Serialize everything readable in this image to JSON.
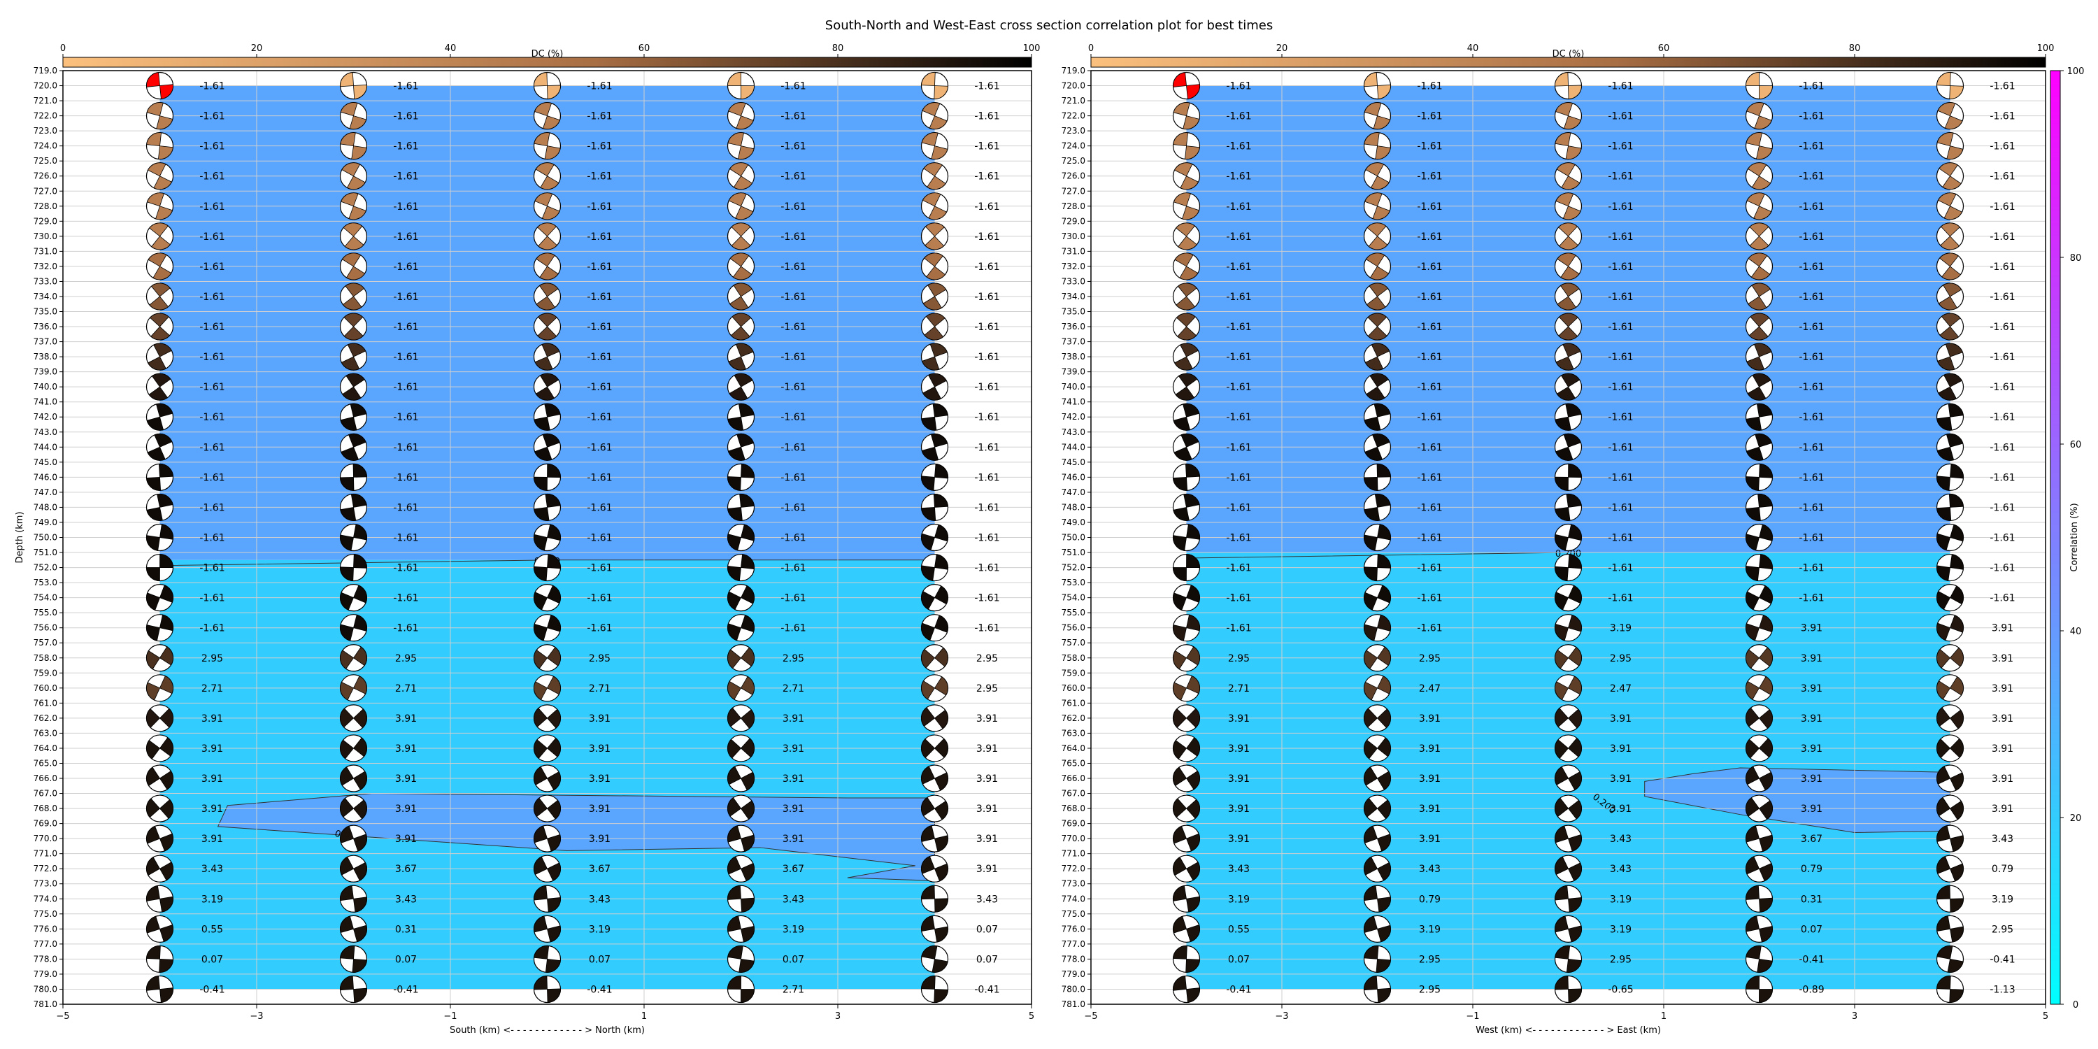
{
  "title": "South-North and West-East cross section correlation plot for best times",
  "colorbar_top": {
    "label": "DC (%)",
    "ticks": [
      "0",
      "20",
      "40",
      "60",
      "80",
      "100"
    ],
    "colors": [
      "#fcc07e",
      "#a86e44",
      "#000000"
    ]
  },
  "colorbar_right": {
    "label": "Correlation (%)",
    "ticks": [
      "0",
      "20",
      "40",
      "60",
      "80",
      "100"
    ],
    "colors": [
      "#00ffff",
      "#8080ff",
      "#ff00ff"
    ]
  },
  "chart_data": [
    {
      "type": "heatmap",
      "name": "south-north",
      "xlabel": "South (km) <- - - - - - - - - - - - > North (km)",
      "ylabel": "Depth (km)",
      "xlim": [
        -5,
        5
      ],
      "ylim": [
        781.0,
        719.0
      ],
      "x_ticks": [
        "-5",
        "-3",
        "-1",
        "1",
        "3",
        "5"
      ],
      "y_ticks": [
        "719.0",
        "720.0",
        "721.0",
        "722.0",
        "723.0",
        "724.0",
        "725.0",
        "726.0",
        "727.0",
        "728.0",
        "729.0",
        "730.0",
        "731.0",
        "732.0",
        "733.0",
        "734.0",
        "735.0",
        "736.0",
        "737.0",
        "738.0",
        "739.0",
        "740.0",
        "741.0",
        "742.0",
        "743.0",
        "744.0",
        "745.0",
        "746.0",
        "747.0",
        "748.0",
        "749.0",
        "750.0",
        "751.0",
        "752.0",
        "753.0",
        "754.0",
        "755.0",
        "756.0",
        "757.0",
        "758.0",
        "759.0",
        "760.0",
        "761.0",
        "762.0",
        "763.0",
        "764.0",
        "765.0",
        "766.0",
        "767.0",
        "768.0",
        "769.0",
        "770.0",
        "771.0",
        "772.0",
        "773.0",
        "774.0",
        "775.0",
        "776.0",
        "777.0",
        "778.0",
        "779.0",
        "780.0",
        "781.0"
      ],
      "columns_x": [
        -4,
        -2,
        0,
        2,
        4
      ],
      "rows_depth": [
        720,
        722,
        724,
        726,
        728,
        730,
        732,
        734,
        736,
        738,
        740,
        742,
        744,
        746,
        748,
        750,
        752,
        754,
        756,
        758,
        760,
        762,
        764,
        766,
        768,
        770,
        772,
        774,
        776,
        778,
        780
      ],
      "labels": [
        [
          "-1.61",
          "-1.61",
          "-1.61",
          "-1.61",
          "-1.61"
        ],
        [
          "-1.61",
          "-1.61",
          "-1.61",
          "-1.61",
          "-1.61"
        ],
        [
          "-1.61",
          "-1.61",
          "-1.61",
          "-1.61",
          "-1.61"
        ],
        [
          "-1.61",
          "-1.61",
          "-1.61",
          "-1.61",
          "-1.61"
        ],
        [
          "-1.61",
          "-1.61",
          "-1.61",
          "-1.61",
          "-1.61"
        ],
        [
          "-1.61",
          "-1.61",
          "-1.61",
          "-1.61",
          "-1.61"
        ],
        [
          "-1.61",
          "-1.61",
          "-1.61",
          "-1.61",
          "-1.61"
        ],
        [
          "-1.61",
          "-1.61",
          "-1.61",
          "-1.61",
          "-1.61"
        ],
        [
          "-1.61",
          "-1.61",
          "-1.61",
          "-1.61",
          "-1.61"
        ],
        [
          "-1.61",
          "-1.61",
          "-1.61",
          "-1.61",
          "-1.61"
        ],
        [
          "-1.61",
          "-1.61",
          "-1.61",
          "-1.61",
          "-1.61"
        ],
        [
          "-1.61",
          "-1.61",
          "-1.61",
          "-1.61",
          "-1.61"
        ],
        [
          "-1.61",
          "-1.61",
          "-1.61",
          "-1.61",
          "-1.61"
        ],
        [
          "-1.61",
          "-1.61",
          "-1.61",
          "-1.61",
          "-1.61"
        ],
        [
          "-1.61",
          "-1.61",
          "-1.61",
          "-1.61",
          "-1.61"
        ],
        [
          "-1.61",
          "-1.61",
          "-1.61",
          "-1.61",
          "-1.61"
        ],
        [
          "-1.61",
          "-1.61",
          "-1.61",
          "-1.61",
          "-1.61"
        ],
        [
          "-1.61",
          "-1.61",
          "-1.61",
          "-1.61",
          "-1.61"
        ],
        [
          "-1.61",
          "-1.61",
          "-1.61",
          "-1.61",
          "-1.61"
        ],
        [
          "2.95",
          "2.95",
          "2.95",
          "2.95",
          "2.95"
        ],
        [
          "2.71",
          "2.71",
          "2.71",
          "2.71",
          "2.95"
        ],
        [
          "3.91",
          "3.91",
          "3.91",
          "3.91",
          "3.91"
        ],
        [
          "3.91",
          "3.91",
          "3.91",
          "3.91",
          "3.91"
        ],
        [
          "3.91",
          "3.91",
          "3.91",
          "3.91",
          "3.91"
        ],
        [
          "3.91",
          "3.91",
          "3.91",
          "3.91",
          "3.91"
        ],
        [
          "3.91",
          "3.91",
          "3.91",
          "3.91",
          "3.91"
        ],
        [
          "3.43",
          "3.67",
          "3.67",
          "3.67",
          "3.91"
        ],
        [
          "3.19",
          "3.43",
          "3.43",
          "3.43",
          "3.43"
        ],
        [
          "0.55",
          "0.31",
          "3.19",
          "3.19",
          "0.07"
        ],
        [
          "0.07",
          "0.07",
          "0.07",
          "0.07",
          "0.07"
        ],
        [
          "-0.41",
          "-0.41",
          "-0.41",
          "2.71",
          "-0.41"
        ]
      ],
      "dc_percent": [
        8,
        40,
        40,
        40,
        40,
        40,
        50,
        60,
        70,
        80,
        90,
        95,
        95,
        95,
        95,
        95,
        95,
        95,
        95,
        78,
        72,
        90,
        92,
        92,
        92,
        92,
        92,
        92,
        92,
        92,
        92
      ],
      "correlation_bands": [
        {
          "from_depth": 719.0,
          "to_depth": 751.5,
          "value_percent": 35
        },
        {
          "from_depth": 751.5,
          "to_depth": 781.0,
          "value_percent": 20
        },
        {
          "region": "768",
          "value_percent": 35
        }
      ],
      "contour_labels": [
        "0.200",
        "0."
      ]
    },
    {
      "type": "heatmap",
      "name": "west-east",
      "xlabel": "West (km) <- - - - - - - - - - - - > East (km)",
      "ylabel": "",
      "xlim": [
        -5,
        5
      ],
      "ylim": [
        781.0,
        719.0
      ],
      "x_ticks": [
        "-5",
        "-3",
        "-1",
        "1",
        "3",
        "5"
      ],
      "columns_x": [
        -4,
        -2,
        0,
        2,
        4
      ],
      "rows_depth": [
        720,
        722,
        724,
        726,
        728,
        730,
        732,
        734,
        736,
        738,
        740,
        742,
        744,
        746,
        748,
        750,
        752,
        754,
        756,
        758,
        760,
        762,
        764,
        766,
        768,
        770,
        772,
        774,
        776,
        778,
        780
      ],
      "labels": [
        [
          "-1.61",
          "-1.61",
          "-1.61",
          "-1.61",
          "-1.61"
        ],
        [
          "-1.61",
          "-1.61",
          "-1.61",
          "-1.61",
          "-1.61"
        ],
        [
          "-1.61",
          "-1.61",
          "-1.61",
          "-1.61",
          "-1.61"
        ],
        [
          "-1.61",
          "-1.61",
          "-1.61",
          "-1.61",
          "-1.61"
        ],
        [
          "-1.61",
          "-1.61",
          "-1.61",
          "-1.61",
          "-1.61"
        ],
        [
          "-1.61",
          "-1.61",
          "-1.61",
          "-1.61",
          "-1.61"
        ],
        [
          "-1.61",
          "-1.61",
          "-1.61",
          "-1.61",
          "-1.61"
        ],
        [
          "-1.61",
          "-1.61",
          "-1.61",
          "-1.61",
          "-1.61"
        ],
        [
          "-1.61",
          "-1.61",
          "-1.61",
          "-1.61",
          "-1.61"
        ],
        [
          "-1.61",
          "-1.61",
          "-1.61",
          "-1.61",
          "-1.61"
        ],
        [
          "-1.61",
          "-1.61",
          "-1.61",
          "-1.61",
          "-1.61"
        ],
        [
          "-1.61",
          "-1.61",
          "-1.61",
          "-1.61",
          "-1.61"
        ],
        [
          "-1.61",
          "-1.61",
          "-1.61",
          "-1.61",
          "-1.61"
        ],
        [
          "-1.61",
          "-1.61",
          "-1.61",
          "-1.61",
          "-1.61"
        ],
        [
          "-1.61",
          "-1.61",
          "-1.61",
          "-1.61",
          "-1.61"
        ],
        [
          "-1.61",
          "-1.61",
          "-1.61",
          "-1.61",
          "-1.61"
        ],
        [
          "-1.61",
          "-1.61",
          "-1.61",
          "-1.61",
          "-1.61"
        ],
        [
          "-1.61",
          "-1.61",
          "-1.61",
          "-1.61",
          "-1.61"
        ],
        [
          "-1.61",
          "-1.61",
          "3.19",
          "3.91",
          "3.91"
        ],
        [
          "2.95",
          "2.95",
          "2.95",
          "3.91",
          "3.91"
        ],
        [
          "2.71",
          "2.47",
          "2.47",
          "3.91",
          "3.91"
        ],
        [
          "3.91",
          "3.91",
          "3.91",
          "3.91",
          "3.91"
        ],
        [
          "3.91",
          "3.91",
          "3.91",
          "3.91",
          "3.91"
        ],
        [
          "3.91",
          "3.91",
          "3.91",
          "3.91",
          "3.91"
        ],
        [
          "3.91",
          "3.91",
          "3.91",
          "3.91",
          "3.91"
        ],
        [
          "3.91",
          "3.91",
          "3.43",
          "3.67",
          "3.43"
        ],
        [
          "3.43",
          "3.43",
          "3.43",
          "0.79",
          "0.79"
        ],
        [
          "3.19",
          "0.79",
          "3.19",
          "0.31",
          "3.19"
        ],
        [
          "0.55",
          "3.19",
          "3.19",
          "0.07",
          "2.95"
        ],
        [
          "0.07",
          "2.95",
          "2.95",
          "-0.41",
          "-0.41"
        ],
        [
          "-0.41",
          "2.95",
          "-0.65",
          "-0.89",
          "-1.13"
        ]
      ],
      "dc_percent": [
        8,
        40,
        40,
        40,
        40,
        40,
        50,
        60,
        70,
        80,
        90,
        95,
        95,
        95,
        95,
        95,
        95,
        95,
        90,
        75,
        72,
        90,
        92,
        92,
        92,
        92,
        92,
        92,
        92,
        92,
        92
      ],
      "correlation_bands": [
        {
          "from_depth": 719.0,
          "to_depth": 751.0,
          "value_percent": 35
        },
        {
          "from_depth": 751.0,
          "to_depth": 781.0,
          "value_percent": 20
        },
        {
          "region": "767",
          "value_percent": 35
        }
      ],
      "contour_labels": [
        "0.200",
        "0.200"
      ]
    }
  ]
}
